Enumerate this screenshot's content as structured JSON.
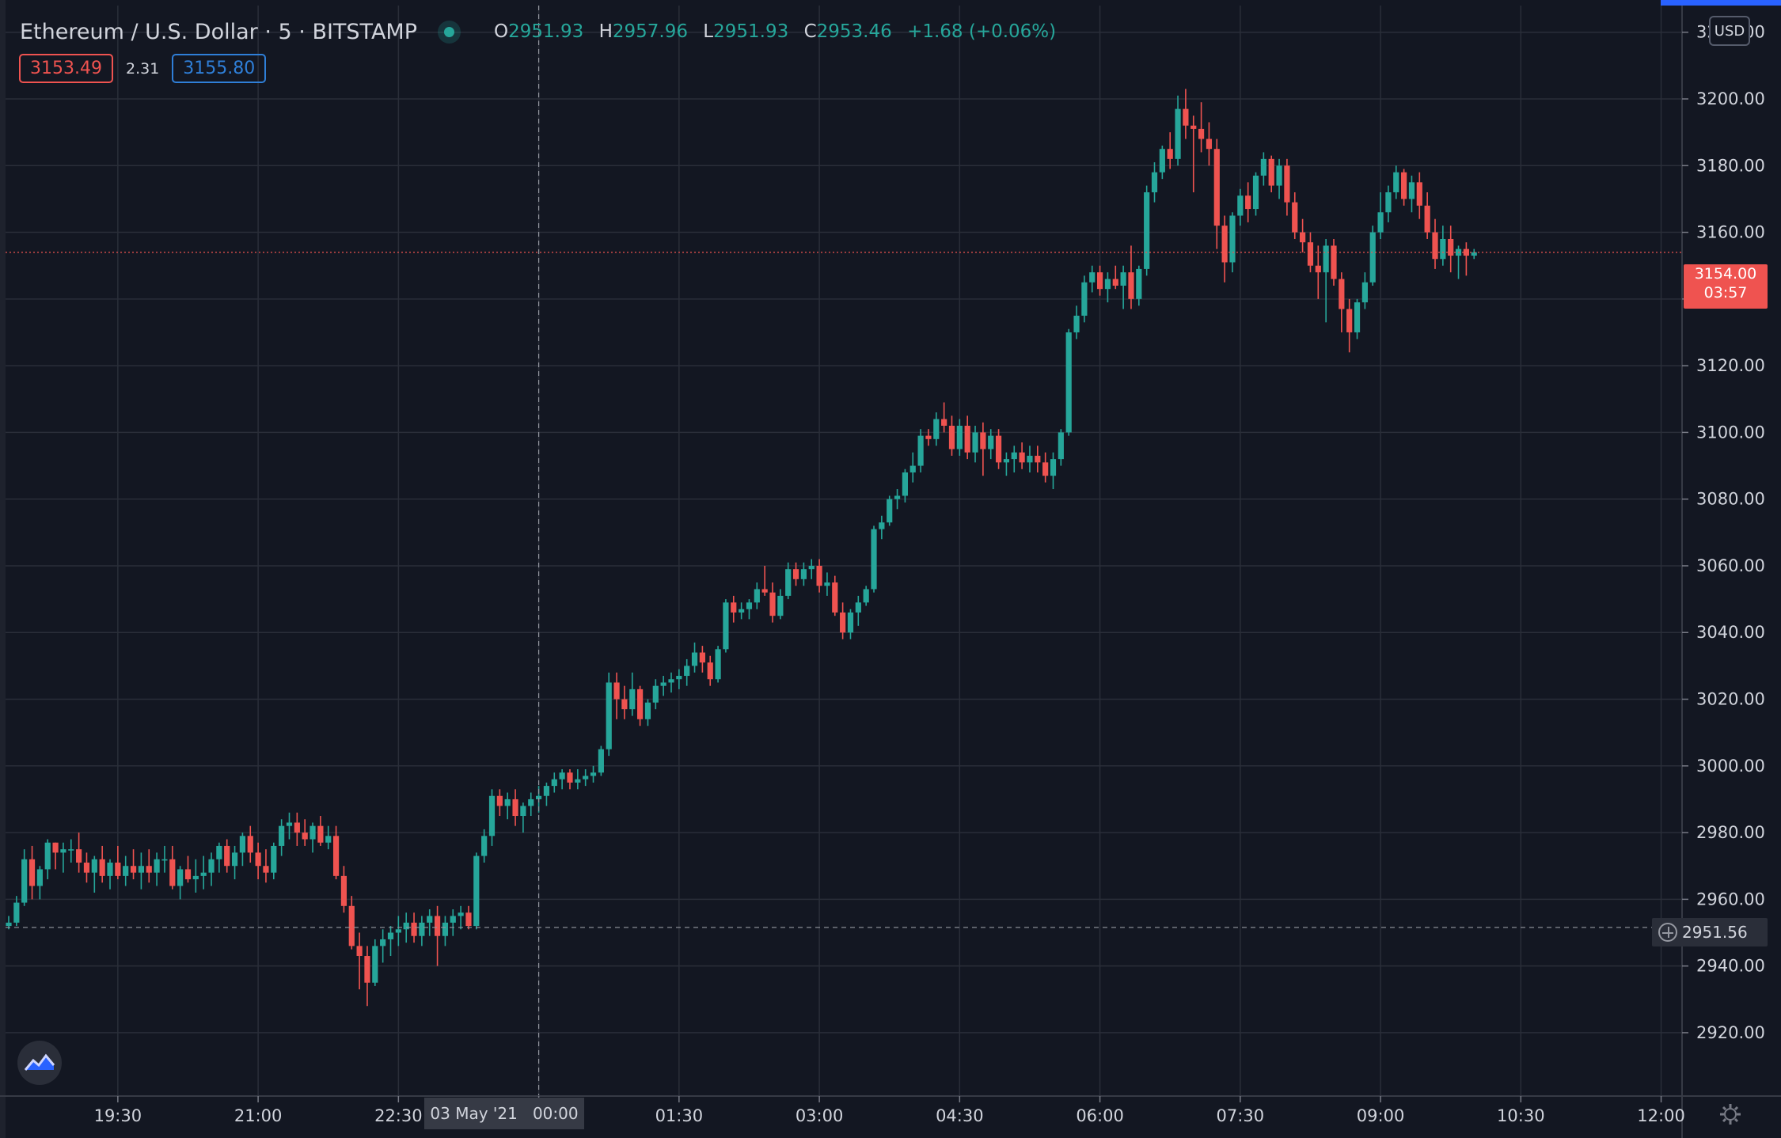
{
  "header": {
    "symbol": "Ethereum / U.S. Dollar · 5 · BITSTAMP",
    "ohlc": {
      "o_label": "O",
      "o": "2951.93",
      "h_label": "H",
      "h": "2957.96",
      "l_label": "L",
      "l": "2951.93",
      "c_label": "C",
      "c": "2953.46",
      "change": "+1.68 (+0.06%)"
    },
    "bid": "3153.49",
    "spread": "2.31",
    "ask": "3155.80",
    "currency_button": "USD"
  },
  "price_labels": {
    "current_price": "3154.00",
    "countdown": "03:57",
    "crosshair_price": "2951.56",
    "crosshair_date": "03 May '21   00:00"
  },
  "colors": {
    "background": "#131722",
    "grid": "#2a2e39",
    "up": "#26a69a",
    "down": "#ef5350",
    "text": "#d1d4dc",
    "accent": "#2962ff"
  },
  "icons": {
    "logo": "tradingview-logo-icon",
    "settings": "gear-icon",
    "crosshair": "plus-circle-icon"
  },
  "chart_data": {
    "type": "candlestick",
    "title": "Ethereum / U.S. Dollar · 5 · BITSTAMP",
    "interval_minutes": 5,
    "y_ticks": [
      2920,
      2940,
      2960,
      2980,
      3000,
      3020,
      3040,
      3060,
      3080,
      3100,
      3120,
      3140,
      3160,
      3180,
      3200,
      3220
    ],
    "ylim": [
      2901,
      3228
    ],
    "x_ticks": [
      {
        "label": "19:30",
        "index": 14
      },
      {
        "label": "21:00",
        "index": 32
      },
      {
        "label": "22:30",
        "index": 50
      },
      {
        "label": "03 May '21",
        "index": 68
      },
      {
        "label": "01:30",
        "index": 86
      },
      {
        "label": "03:00",
        "index": 104
      },
      {
        "label": "04:30",
        "index": 122
      },
      {
        "label": "06:00",
        "index": 140
      },
      {
        "label": "07:30",
        "index": 158
      },
      {
        "label": "09:00",
        "index": 176
      },
      {
        "label": "10:30",
        "index": 194
      },
      {
        "label": "12:00",
        "index": 212
      }
    ],
    "current_price": 3154.0,
    "crosshair": {
      "index": 68,
      "price": 2951.56
    },
    "grid": true,
    "candles": [
      [
        2952,
        2955,
        2951,
        2953
      ],
      [
        2953,
        2961,
        2952,
        2959
      ],
      [
        2959,
        2975,
        2958,
        2972
      ],
      [
        2972,
        2976,
        2960,
        2964
      ],
      [
        2964,
        2970,
        2960,
        2969
      ],
      [
        2969,
        2978,
        2966,
        2977
      ],
      [
        2977,
        2977,
        2969,
        2974
      ],
      [
        2974,
        2977,
        2968,
        2975
      ],
      [
        2975,
        2978,
        2971,
        2975
      ],
      [
        2975,
        2980,
        2968,
        2971
      ],
      [
        2971,
        2974,
        2965,
        2968
      ],
      [
        2968,
        2973,
        2962,
        2972
      ],
      [
        2972,
        2976,
        2965,
        2967
      ],
      [
        2967,
        2972,
        2963,
        2971
      ],
      [
        2971,
        2976,
        2966,
        2967
      ],
      [
        2967,
        2973,
        2964,
        2970
      ],
      [
        2970,
        2975,
        2966,
        2968
      ],
      [
        2968,
        2974,
        2963,
        2970
      ],
      [
        2970,
        2975,
        2965,
        2968
      ],
      [
        2968,
        2974,
        2964,
        2972
      ],
      [
        2972,
        2976,
        2968,
        2972
      ],
      [
        2972,
        2976,
        2963,
        2964
      ],
      [
        2964,
        2970,
        2960,
        2969
      ],
      [
        2969,
        2973,
        2965,
        2966
      ],
      [
        2966,
        2972,
        2962,
        2967
      ],
      [
        2967,
        2973,
        2963,
        2968
      ],
      [
        2968,
        2974,
        2964,
        2972
      ],
      [
        2972,
        2977,
        2968,
        2976
      ],
      [
        2976,
        2978,
        2968,
        2970
      ],
      [
        2970,
        2976,
        2966,
        2974
      ],
      [
        2974,
        2980,
        2970,
        2979
      ],
      [
        2979,
        2982,
        2971,
        2974
      ],
      [
        2974,
        2977,
        2966,
        2970
      ],
      [
        2970,
        2975,
        2965,
        2968
      ],
      [
        2968,
        2977,
        2966,
        2976
      ],
      [
        2976,
        2984,
        2973,
        2982
      ],
      [
        2982,
        2986,
        2978,
        2983
      ],
      [
        2983,
        2986,
        2976,
        2980
      ],
      [
        2980,
        2984,
        2976,
        2978
      ],
      [
        2978,
        2983,
        2974,
        2982
      ],
      [
        2982,
        2985,
        2976,
        2977
      ],
      [
        2977,
        2982,
        2975,
        2979
      ],
      [
        2979,
        2982,
        2966,
        2967
      ],
      [
        2967,
        2970,
        2956,
        2958
      ],
      [
        2958,
        2961,
        2945,
        2946
      ],
      [
        2946,
        2950,
        2933,
        2943
      ],
      [
        2943,
        2946,
        2928,
        2935
      ],
      [
        2935,
        2948,
        2934,
        2946
      ],
      [
        2946,
        2951,
        2941,
        2948
      ],
      [
        2948,
        2952,
        2943,
        2950
      ],
      [
        2950,
        2955,
        2946,
        2951
      ],
      [
        2951,
        2956,
        2947,
        2953
      ],
      [
        2953,
        2956,
        2947,
        2949
      ],
      [
        2949,
        2955,
        2946,
        2953
      ],
      [
        2953,
        2957,
        2949,
        2955
      ],
      [
        2955,
        2958,
        2940,
        2949
      ],
      [
        2949,
        2955,
        2946,
        2953
      ],
      [
        2953,
        2957,
        2949,
        2955
      ],
      [
        2955,
        2958,
        2951,
        2956
      ],
      [
        2956,
        2958,
        2951,
        2952
      ],
      [
        2952,
        2974,
        2951,
        2973
      ],
      [
        2973,
        2981,
        2971,
        2979
      ],
      [
        2979,
        2993,
        2976,
        2991
      ],
      [
        2991,
        2993,
        2985,
        2988
      ],
      [
        2988,
        2992,
        2984,
        2990
      ],
      [
        2990,
        2993,
        2982,
        2985
      ],
      [
        2985,
        2989,
        2980,
        2988
      ],
      [
        2988,
        2992,
        2985,
        2990
      ],
      [
        2990,
        2994,
        2986,
        2991
      ],
      [
        2991,
        2995,
        2988,
        2994
      ],
      [
        2994,
        2998,
        2992,
        2996
      ],
      [
        2996,
        2999,
        2993,
        2998
      ],
      [
        2998,
        2999,
        2993,
        2995
      ],
      [
        2995,
        2999,
        2993,
        2996
      ],
      [
        2996,
        2999,
        2994,
        2997
      ],
      [
        2997,
        3000,
        2995,
        2998
      ],
      [
        2998,
        3006,
        2997,
        3005
      ],
      [
        3005,
        3028,
        3003,
        3025
      ],
      [
        3025,
        3028,
        3014,
        3020
      ],
      [
        3020,
        3024,
        3014,
        3017
      ],
      [
        3017,
        3028,
        3015,
        3023
      ],
      [
        3023,
        3024,
        3012,
        3014
      ],
      [
        3014,
        3020,
        3012,
        3019
      ],
      [
        3019,
        3026,
        3017,
        3024
      ],
      [
        3024,
        3027,
        3021,
        3025
      ],
      [
        3025,
        3028,
        3022,
        3026
      ],
      [
        3026,
        3029,
        3023,
        3027
      ],
      [
        3027,
        3032,
        3024,
        3030
      ],
      [
        3030,
        3037,
        3028,
        3034
      ],
      [
        3034,
        3036,
        3028,
        3031
      ],
      [
        3031,
        3033,
        3024,
        3026
      ],
      [
        3026,
        3036,
        3025,
        3035
      ],
      [
        3035,
        3050,
        3034,
        3049
      ],
      [
        3049,
        3051,
        3043,
        3046
      ],
      [
        3046,
        3049,
        3044,
        3047
      ],
      [
        3047,
        3050,
        3044,
        3049
      ],
      [
        3049,
        3055,
        3047,
        3053
      ],
      [
        3053,
        3060,
        3051,
        3052
      ],
      [
        3052,
        3055,
        3043,
        3045
      ],
      [
        3045,
        3053,
        3044,
        3051
      ],
      [
        3051,
        3061,
        3050,
        3059
      ],
      [
        3059,
        3061,
        3054,
        3056
      ],
      [
        3056,
        3061,
        3054,
        3059
      ],
      [
        3059,
        3062,
        3056,
        3060
      ],
      [
        3060,
        3062,
        3052,
        3054
      ],
      [
        3054,
        3058,
        3051,
        3055
      ],
      [
        3055,
        3057,
        3045,
        3046
      ],
      [
        3046,
        3049,
        3038,
        3040
      ],
      [
        3040,
        3047,
        3038,
        3046
      ],
      [
        3046,
        3051,
        3042,
        3049
      ],
      [
        3049,
        3054,
        3048,
        3053
      ],
      [
        3053,
        3072,
        3052,
        3071
      ],
      [
        3071,
        3075,
        3068,
        3073
      ],
      [
        3073,
        3081,
        3072,
        3080
      ],
      [
        3080,
        3083,
        3077,
        3081
      ],
      [
        3081,
        3089,
        3079,
        3088
      ],
      [
        3088,
        3094,
        3085,
        3090
      ],
      [
        3090,
        3101,
        3088,
        3099
      ],
      [
        3099,
        3101,
        3096,
        3098
      ],
      [
        3098,
        3106,
        3096,
        3104
      ],
      [
        3104,
        3109,
        3100,
        3102
      ],
      [
        3102,
        3105,
        3093,
        3095
      ],
      [
        3095,
        3104,
        3093,
        3102
      ],
      [
        3102,
        3105,
        3092,
        3094
      ],
      [
        3094,
        3102,
        3091,
        3100
      ],
      [
        3100,
        3103,
        3087,
        3095
      ],
      [
        3095,
        3101,
        3092,
        3099
      ],
      [
        3099,
        3101,
        3089,
        3091
      ],
      [
        3091,
        3094,
        3087,
        3092
      ],
      [
        3092,
        3096,
        3088,
        3094
      ],
      [
        3094,
        3097,
        3089,
        3091
      ],
      [
        3091,
        3096,
        3088,
        3093
      ],
      [
        3093,
        3096,
        3088,
        3091
      ],
      [
        3091,
        3094,
        3085,
        3087
      ],
      [
        3087,
        3094,
        3083,
        3092
      ],
      [
        3092,
        3101,
        3090,
        3100
      ],
      [
        3100,
        3131,
        3099,
        3130
      ],
      [
        3130,
        3138,
        3128,
        3135
      ],
      [
        3135,
        3147,
        3133,
        3145
      ],
      [
        3145,
        3150,
        3142,
        3148
      ],
      [
        3148,
        3150,
        3141,
        3143
      ],
      [
        3143,
        3148,
        3139,
        3146
      ],
      [
        3146,
        3150,
        3143,
        3144
      ],
      [
        3144,
        3150,
        3137,
        3148
      ],
      [
        3148,
        3156,
        3137,
        3140
      ],
      [
        3140,
        3150,
        3138,
        3149
      ],
      [
        3149,
        3174,
        3147,
        3172
      ],
      [
        3172,
        3181,
        3169,
        3178
      ],
      [
        3178,
        3186,
        3176,
        3185
      ],
      [
        3185,
        3190,
        3179,
        3182
      ],
      [
        3182,
        3201,
        3180,
        3197
      ],
      [
        3197,
        3203,
        3188,
        3192
      ],
      [
        3192,
        3195,
        3172,
        3191
      ],
      [
        3191,
        3199,
        3184,
        3188
      ],
      [
        3188,
        3193,
        3180,
        3185
      ],
      [
        3185,
        3188,
        3155,
        3162
      ],
      [
        3162,
        3165,
        3145,
        3151
      ],
      [
        3151,
        3166,
        3148,
        3165
      ],
      [
        3165,
        3173,
        3162,
        3171
      ],
      [
        3171,
        3175,
        3163,
        3167
      ],
      [
        3167,
        3178,
        3165,
        3177
      ],
      [
        3177,
        3184,
        3174,
        3182
      ],
      [
        3182,
        3183,
        3172,
        3174
      ],
      [
        3174,
        3182,
        3170,
        3180
      ],
      [
        3180,
        3182,
        3165,
        3169
      ],
      [
        3169,
        3172,
        3158,
        3160
      ],
      [
        3160,
        3164,
        3154,
        3157
      ],
      [
        3157,
        3160,
        3148,
        3150
      ],
      [
        3150,
        3156,
        3140,
        3148
      ],
      [
        3148,
        3158,
        3133,
        3156
      ],
      [
        3156,
        3158,
        3144,
        3146
      ],
      [
        3146,
        3148,
        3130,
        3137
      ],
      [
        3137,
        3140,
        3124,
        3130
      ],
      [
        3130,
        3140,
        3128,
        3139
      ],
      [
        3139,
        3148,
        3137,
        3145
      ],
      [
        3145,
        3162,
        3144,
        3160
      ],
      [
        3160,
        3172,
        3158,
        3166
      ],
      [
        3166,
        3174,
        3163,
        3172
      ],
      [
        3172,
        3180,
        3170,
        3178
      ],
      [
        3178,
        3179,
        3168,
        3170
      ],
      [
        3170,
        3177,
        3166,
        3175
      ],
      [
        3175,
        3178,
        3164,
        3168
      ],
      [
        3168,
        3172,
        3158,
        3160
      ],
      [
        3160,
        3164,
        3149,
        3152
      ],
      [
        3152,
        3162,
        3150,
        3158
      ],
      [
        3158,
        3162,
        3148,
        3153
      ],
      [
        3153,
        3156,
        3146,
        3155
      ],
      [
        3155,
        3157,
        3147,
        3153
      ],
      [
        3153,
        3155,
        3152,
        3154
      ]
    ]
  }
}
